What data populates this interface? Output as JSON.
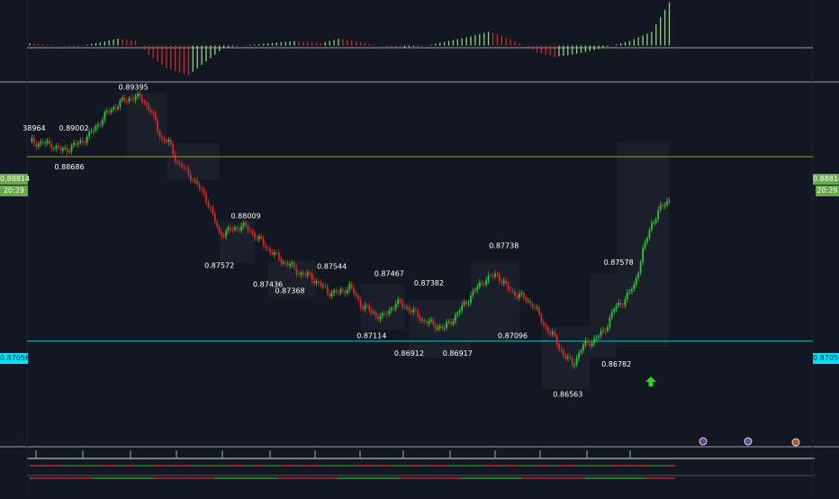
{
  "colors": {
    "background": "#131722",
    "bull": "#26c63a",
    "bear": "#d42a2a",
    "macd_up": "#8fcf7f",
    "macd_down": "#c42d2d",
    "resistance": "#8fa21f",
    "support": "#1fb8c8",
    "price_tag_green": "#6aa84f",
    "price_tag_cyan": "#00e5ff",
    "arrow": "#2bd12b",
    "label_text": "#ffffff",
    "axis_text": "#5d6272"
  },
  "price_tags": {
    "resistance_left": "0.88814",
    "resistance_right": "0.88814",
    "countdown_left": "20:29",
    "countdown_right": "20:29",
    "support_left": "0.87056",
    "support_right": "0.87056"
  },
  "chart_data": [
    {
      "type": "candlestick",
      "panel": "price",
      "ylim": [
        0.861,
        0.8945
      ],
      "x_count": 160,
      "path": [
        [
          0,
          0.8896
        ],
        [
          10,
          0.8893
        ],
        [
          14,
          0.8887
        ],
        [
          18,
          0.889
        ],
        [
          22,
          0.8894
        ],
        [
          27,
          0.8902
        ],
        [
          33,
          0.8918
        ],
        [
          37,
          0.8927
        ],
        [
          42,
          0.8934
        ],
        [
          46,
          0.8938
        ],
        [
          51,
          0.8937
        ],
        [
          55,
          0.8924
        ],
        [
          60,
          0.8898
        ],
        [
          63,
          0.8895
        ],
        [
          67,
          0.8876
        ],
        [
          73,
          0.8863
        ],
        [
          80,
          0.8842
        ],
        [
          86,
          0.8808
        ],
        [
          91,
          0.8811
        ],
        [
          96,
          0.8816
        ],
        [
          100,
          0.8811
        ],
        [
          105,
          0.88
        ],
        [
          110,
          0.879
        ],
        [
          113,
          0.8784
        ],
        [
          118,
          0.8778
        ],
        [
          122,
          0.8771
        ],
        [
          128,
          0.8766
        ],
        [
          135,
          0.8753
        ],
        [
          140,
          0.8751
        ],
        [
          145,
          0.8758
        ],
        [
          150,
          0.8741
        ],
        [
          155,
          0.8733
        ],
        [
          160,
          0.8728
        ],
        [
          166,
          0.8742
        ],
        [
          171,
          0.8738
        ],
        [
          178,
          0.8726
        ],
        [
          183,
          0.8721
        ],
        [
          188,
          0.8718
        ],
        [
          194,
          0.8732
        ],
        [
          200,
          0.8749
        ],
        [
          206,
          0.8764
        ],
        [
          212,
          0.8769
        ],
        [
          217,
          0.8755
        ],
        [
          222,
          0.8749
        ],
        [
          228,
          0.8741
        ],
        [
          233,
          0.8722
        ],
        [
          238,
          0.8708
        ],
        [
          242,
          0.8693
        ],
        [
          246,
          0.8683
        ],
        [
          251,
          0.8701
        ],
        [
          256,
          0.8707
        ],
        [
          260,
          0.8714
        ],
        [
          265,
          0.8736
        ],
        [
          270,
          0.8746
        ],
        [
          274,
          0.8758
        ],
        [
          278,
          0.8791
        ],
        [
          282,
          0.8818
        ],
        [
          286,
          0.8832
        ],
        [
          290,
          0.8841
        ]
      ],
      "labels": [
        {
          "text": "0.88964",
          "text_display": "38964",
          "x": 2,
          "y": 0.8903,
          "pos": "above"
        },
        {
          "text": "0.89002",
          "x": 20,
          "y": 0.8903,
          "pos": "above"
        },
        {
          "text": "0.88686",
          "x": 18,
          "y": 0.8878,
          "pos": "below"
        },
        {
          "text": "0.89395",
          "x": 47,
          "y": 0.8942,
          "pos": "above"
        },
        {
          "text": "0.88009",
          "x": 98,
          "y": 0.8819,
          "pos": "above"
        },
        {
          "text": "0.87572",
          "x": 86,
          "y": 0.8784,
          "pos": "below"
        },
        {
          "text": "0.87436",
          "x": 108,
          "y": 0.8766,
          "pos": "below"
        },
        {
          "text": "0.87368",
          "x": 118,
          "y": 0.876,
          "pos": "below"
        },
        {
          "text": "0.87544",
          "x": 137,
          "y": 0.8771,
          "pos": "above"
        },
        {
          "text": "0.87467",
          "x": 163,
          "y": 0.8764,
          "pos": "above"
        },
        {
          "text": "0.87114",
          "x": 155,
          "y": 0.8717,
          "pos": "below"
        },
        {
          "text": "0.87382",
          "x": 181,
          "y": 0.8755,
          "pos": "above"
        },
        {
          "text": "0.86912",
          "x": 172,
          "y": 0.87,
          "pos": "below"
        },
        {
          "text": "0.86917",
          "x": 194,
          "y": 0.87,
          "pos": "below"
        },
        {
          "text": "0.87738",
          "x": 215,
          "y": 0.8791,
          "pos": "above"
        },
        {
          "text": "0.87096",
          "x": 219,
          "y": 0.8717,
          "pos": "below"
        },
        {
          "text": "0.86563",
          "x": 244,
          "y": 0.8661,
          "pos": "below"
        },
        {
          "text": "0.87578",
          "x": 267,
          "y": 0.8775,
          "pos": "above"
        },
        {
          "text": "0.86782",
          "x": 266,
          "y": 0.869,
          "pos": "below"
        }
      ],
      "levels": [
        {
          "name": "resistance",
          "value": 0.88814
        },
        {
          "name": "support",
          "value": 0.87056
        }
      ]
    },
    {
      "type": "bar",
      "panel": "macd",
      "ylim": [
        -0.0016,
        0.002
      ],
      "values_path": [
        [
          0,
          0.0001
        ],
        [
          8,
          5e-05
        ],
        [
          20,
          -5e-05
        ],
        [
          30,
          0.0001
        ],
        [
          40,
          0.0003
        ],
        [
          48,
          0.0002
        ],
        [
          54,
          -0.0004
        ],
        [
          62,
          -0.001
        ],
        [
          72,
          -0.0013
        ],
        [
          80,
          -0.0007
        ],
        [
          88,
          -0.0001
        ],
        [
          96,
          0.0
        ],
        [
          108,
          0.0001
        ],
        [
          120,
          0.0002
        ],
        [
          132,
          0.0001
        ],
        [
          140,
          0.0003
        ],
        [
          150,
          0.00015
        ],
        [
          158,
          0.0
        ],
        [
          168,
          -0.0001
        ],
        [
          180,
          0.0
        ],
        [
          190,
          0.0002
        ],
        [
          200,
          0.0004
        ],
        [
          208,
          0.0006
        ],
        [
          212,
          0.0005
        ],
        [
          222,
          0.0001
        ],
        [
          230,
          -0.0003
        ],
        [
          238,
          -0.0005
        ],
        [
          246,
          -0.0004
        ],
        [
          256,
          -0.0002
        ],
        [
          264,
          0.0
        ],
        [
          272,
          0.0002
        ],
        [
          282,
          0.0006
        ],
        [
          290,
          0.0019
        ]
      ]
    }
  ]
}
